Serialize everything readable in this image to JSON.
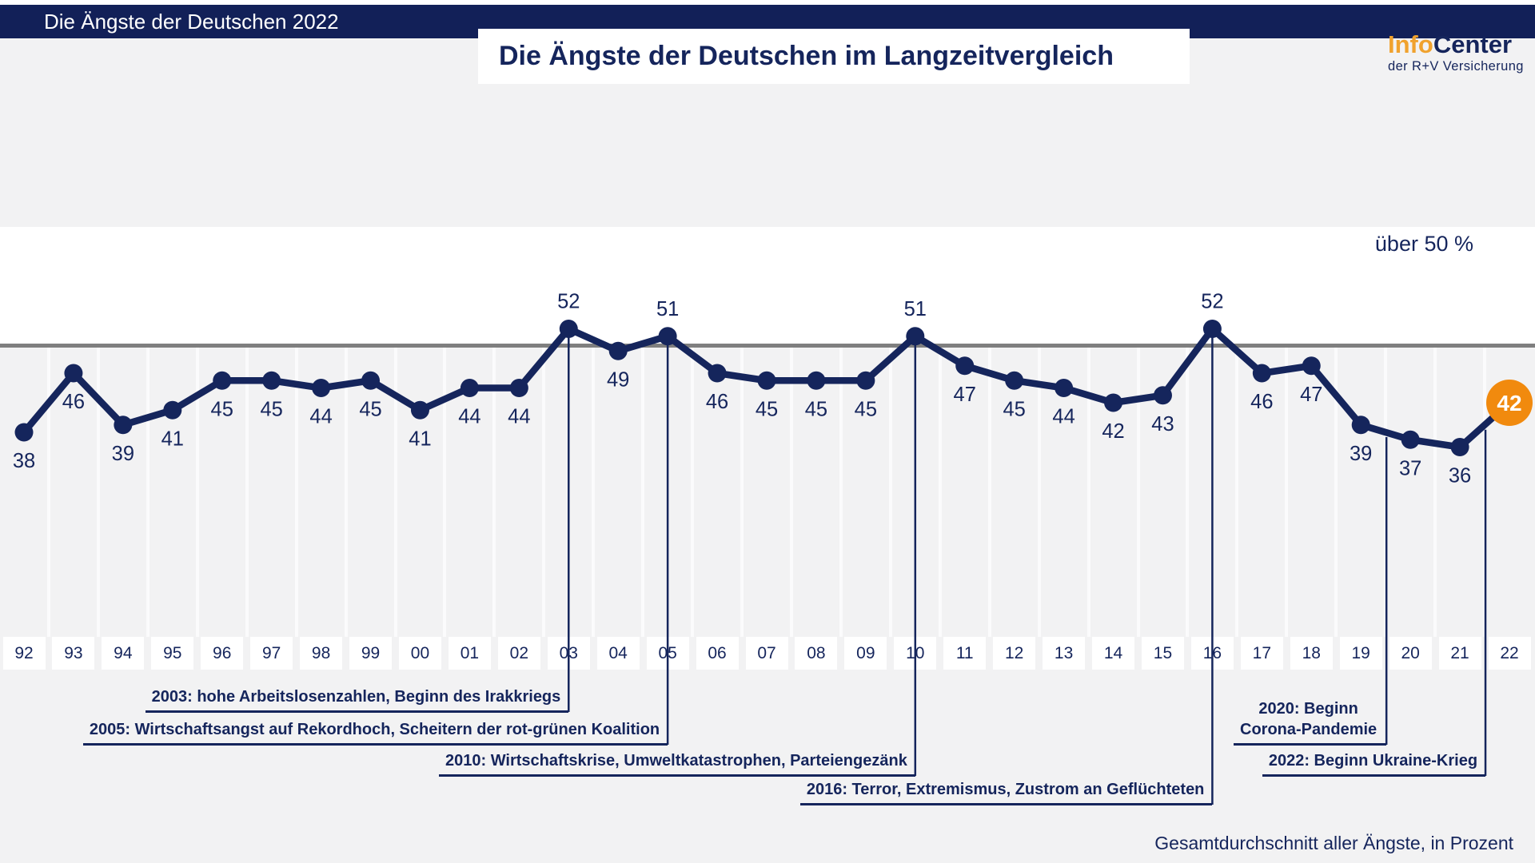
{
  "header": {
    "bar_title": "Die Ängste der Deutschen 2022",
    "main_title": "Die Ängste der Deutschen im Langzeitvergleich"
  },
  "logo": {
    "part1": "Info",
    "part2": "Center",
    "subtitle": "der R+V Versicherung"
  },
  "colors": {
    "navy": "#15255c",
    "header_bar": "#122058",
    "highlight_orange": "#f18a0e",
    "logo_orange": "#f0a22e",
    "background_gray": "#f2f2f3",
    "threshold_gray": "#7f7f7f",
    "white": "#ffffff"
  },
  "chart_data": {
    "type": "line",
    "title": "Die Ängste der Deutschen im Langzeitvergleich",
    "categories": [
      "92",
      "93",
      "94",
      "95",
      "96",
      "97",
      "98",
      "99",
      "00",
      "01",
      "02",
      "03",
      "04",
      "05",
      "06",
      "07",
      "08",
      "09",
      "10",
      "11",
      "12",
      "13",
      "14",
      "15",
      "16",
      "17",
      "18",
      "19",
      "20",
      "21",
      "22"
    ],
    "values": [
      38,
      46,
      39,
      41,
      45,
      45,
      44,
      45,
      41,
      44,
      44,
      52,
      49,
      51,
      46,
      45,
      45,
      45,
      51,
      47,
      45,
      44,
      42,
      43,
      52,
      46,
      47,
      39,
      37,
      36,
      42
    ],
    "threshold": {
      "value": 50,
      "label": "über 50 %"
    },
    "highlight": {
      "category": "22",
      "value": 42,
      "color": "#f18a0e"
    },
    "series_color": "#15255c",
    "legend": null,
    "grid": "vertical-column-stripes",
    "footnote": "Gesamtdurchschnitt aller Ängste, in Prozent",
    "annotations": [
      {
        "year": "03",
        "label": "2003: hohe Arbeitslosenzahlen, Beginn des Irakkriegs",
        "row": 0,
        "connector": "year-center"
      },
      {
        "year": "05",
        "label": "2005: Wirtschaftsangst auf Rekordhoch, Scheitern der rot-grünen Koalition",
        "row": 1,
        "connector": "year-center"
      },
      {
        "year": "10",
        "label": "2010: Wirtschaftskrise, Umweltkatastrophen, Parteiengezänk",
        "row": 2,
        "connector": "year-center"
      },
      {
        "year": "16",
        "label": "2016: Terror, Extremismus, Zustrom an Geflüchteten",
        "row": 3,
        "connector": "year-center"
      },
      {
        "year": "20",
        "label": "2020: Beginn Corona-Pandemie",
        "lines": [
          "2020: Beginn",
          "Corona-Pandemie"
        ],
        "row": 1,
        "connector": "column-left"
      },
      {
        "year": "22",
        "label": "2022: Beginn Ukraine-Krieg",
        "row": 2,
        "connector": "column-left"
      }
    ]
  }
}
